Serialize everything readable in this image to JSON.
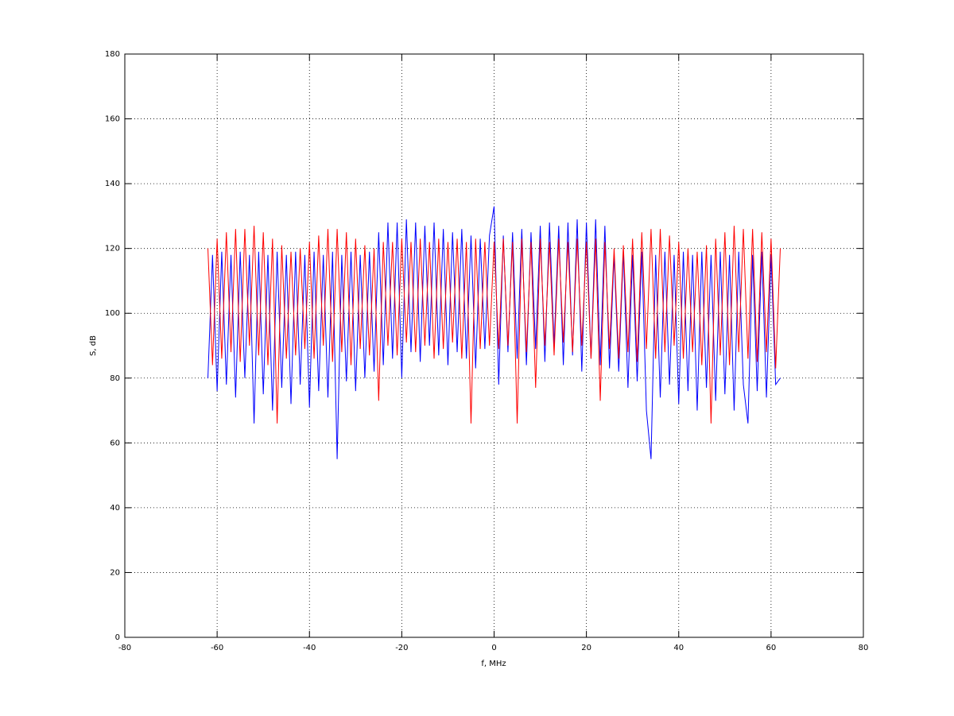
{
  "chart_data": {
    "type": "line",
    "xlabel": "f, MHz",
    "ylabel": "S, dB",
    "xlim": [
      -80,
      80
    ],
    "xticks": [
      -80,
      -60,
      -40,
      -20,
      0,
      20,
      40,
      60,
      80
    ],
    "ylim": [
      0,
      180
    ],
    "yticks": [
      0,
      20,
      40,
      60,
      80,
      100,
      120,
      140,
      160,
      180
    ],
    "grid": true,
    "x": [
      -62,
      -61,
      -60,
      -59,
      -58,
      -57,
      -56,
      -55,
      -54,
      -53,
      -52,
      -51,
      -50,
      -49,
      -48,
      -47,
      -46,
      -45,
      -44,
      -43,
      -42,
      -41,
      -40,
      -39,
      -38,
      -37,
      -36,
      -35,
      -34,
      -33,
      -32,
      -31,
      -30,
      -29,
      -28,
      -27,
      -26,
      -25,
      -24,
      -23,
      -22,
      -21,
      -20,
      -19,
      -18,
      -17,
      -16,
      -15,
      -14,
      -13,
      -12,
      -11,
      -10,
      -9,
      -8,
      -7,
      -6,
      -5,
      -4,
      -3,
      -2,
      -1,
      0,
      1,
      2,
      3,
      4,
      5,
      6,
      7,
      8,
      9,
      10,
      11,
      12,
      13,
      14,
      15,
      16,
      17,
      18,
      19,
      20,
      21,
      22,
      23,
      24,
      25,
      26,
      27,
      28,
      29,
      30,
      31,
      32,
      33,
      34,
      35,
      36,
      37,
      38,
      39,
      40,
      41,
      42,
      43,
      44,
      45,
      46,
      47,
      48,
      49,
      50,
      51,
      52,
      53,
      54,
      55,
      56,
      57,
      58,
      59,
      60,
      61,
      62
    ],
    "series": [
      {
        "color": "#0000ff",
        "values": [
          80,
          118,
          76,
          119,
          78,
          118,
          74,
          119,
          80,
          118,
          66,
          119,
          75,
          118,
          70,
          119,
          77,
          118,
          72,
          119,
          78,
          118,
          71,
          119,
          76,
          118,
          74,
          119,
          55,
          118,
          79,
          119,
          76,
          118,
          80,
          119,
          82,
          125,
          84,
          128,
          86,
          128,
          80,
          129,
          88,
          128,
          85,
          127,
          90,
          128,
          87,
          126,
          84,
          125,
          88,
          126,
          86,
          124,
          83,
          123,
          89,
          124,
          133,
          78,
          124,
          88,
          125,
          86,
          126,
          84,
          125,
          89,
          127,
          85,
          128,
          90,
          127,
          84,
          128,
          87,
          129,
          82,
          128,
          86,
          129,
          84,
          127,
          83,
          118,
          82,
          119,
          77,
          118,
          79,
          119,
          70,
          55,
          118,
          74,
          119,
          78,
          118,
          72,
          119,
          76,
          118,
          70,
          119,
          77,
          118,
          73,
          119,
          75,
          118,
          70,
          119,
          78,
          66,
          118,
          76,
          119,
          74,
          118,
          78,
          80
        ]
      },
      {
        "color": "#ff0000",
        "values": [
          120,
          84,
          123,
          86,
          125,
          88,
          126,
          85,
          126,
          90,
          127,
          87,
          125,
          84,
          123,
          66,
          121,
          86,
          119,
          87,
          120,
          89,
          122,
          86,
          124,
          90,
          126,
          85,
          126,
          88,
          125,
          84,
          123,
          89,
          121,
          87,
          120,
          73,
          122,
          90,
          122,
          87,
          123,
          91,
          122,
          88,
          123,
          90,
          122,
          86,
          123,
          89,
          122,
          91,
          123,
          86,
          122,
          66,
          123,
          89,
          122,
          90,
          122,
          89,
          123,
          90,
          122,
          66,
          123,
          88,
          122,
          77,
          123,
          90,
          122,
          87,
          123,
          91,
          122,
          88,
          123,
          90,
          122,
          86,
          123,
          73,
          122,
          89,
          120,
          86,
          121,
          88,
          123,
          85,
          125,
          89,
          126,
          86,
          126,
          88,
          124,
          90,
          122,
          86,
          120,
          88,
          119,
          84,
          121,
          66,
          123,
          87,
          125,
          84,
          127,
          88,
          126,
          86,
          126,
          85,
          125,
          88,
          123,
          83,
          120
        ]
      }
    ]
  }
}
